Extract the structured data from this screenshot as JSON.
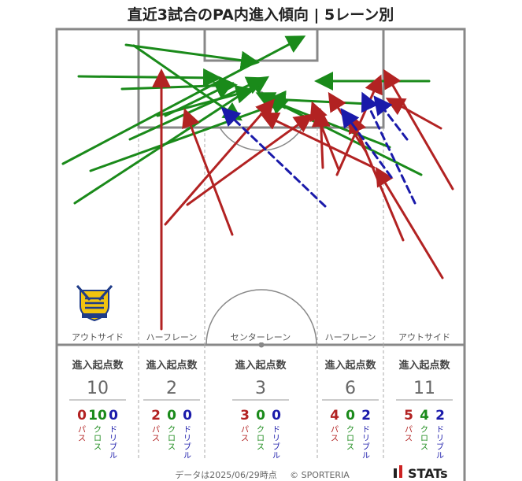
{
  "title": "直近3試合のPA内進入傾向 | 5レーン別",
  "footer": {
    "date": "データは2025/06/29時点",
    "copyright": "© SPORTERIA",
    "logo": "STATs"
  },
  "colors": {
    "pass": "#b22222",
    "cross": "#1a8a1a",
    "dribble": "#1a1aaa",
    "line": "#888888",
    "divider": "#aaaaaa"
  },
  "icons": {
    "team_crest": "team-crest-icon",
    "brand_logo": "stats-logo-icon"
  },
  "chart_data": {
    "type": "arrow-map",
    "lanes": [
      {
        "name": "アウトサイド",
        "header": "進入起点数",
        "total": "10",
        "pass": "0",
        "cross": "10",
        "dribble": "0"
      },
      {
        "name": "ハーフレーン",
        "header": "進入起点数",
        "total": "2",
        "pass": "2",
        "cross": "0",
        "dribble": "0"
      },
      {
        "name": "センターレーン",
        "header": "進入起点数",
        "total": "3",
        "pass": "3",
        "cross": "0",
        "dribble": "0"
      },
      {
        "name": "ハーフレーン",
        "header": "進入起点数",
        "total": "6",
        "pass": "4",
        "cross": "0",
        "dribble": "2"
      },
      {
        "name": "アウトサイド",
        "header": "進入起点数",
        "total": "11",
        "pass": "5",
        "cross": "4",
        "dribble": "2"
      }
    ],
    "type_labels": {
      "pass": "パス",
      "cross": "クロス",
      "dribble": "ドリブル"
    },
    "arrows": [
      {
        "kind": "cross",
        "from": [
          80,
          208
        ],
        "to": [
          383,
          48
        ]
      },
      {
        "kind": "cross",
        "from": [
          95,
          258
        ],
        "to": [
          337,
          100
        ]
      },
      {
        "kind": "cross",
        "from": [
          115,
          217
        ],
        "to": [
          363,
          128
        ]
      },
      {
        "kind": "cross",
        "from": [
          165,
          177
        ],
        "to": [
          332,
          101
        ]
      },
      {
        "kind": "cross",
        "from": [
          200,
          147
        ],
        "to": [
          318,
          115
        ]
      },
      {
        "kind": "cross",
        "from": [
          100,
          97
        ],
        "to": [
          276,
          99
        ]
      },
      {
        "kind": "cross",
        "from": [
          155,
          113
        ],
        "to": [
          296,
          108
        ]
      },
      {
        "kind": "cross",
        "from": [
          170,
          58
        ],
        "to": [
          303,
          150
        ]
      },
      {
        "kind": "cross",
        "from": [
          210,
          147
        ],
        "to": [
          292,
          107
        ]
      },
      {
        "kind": "cross",
        "from": [
          160,
          57
        ],
        "to": [
          324,
          79
        ]
      },
      {
        "kind": "cross",
        "from": [
          545,
          103
        ],
        "to": [
          405,
          103
        ]
      },
      {
        "kind": "cross",
        "from": [
          535,
          222
        ],
        "to": [
          330,
          120
        ]
      },
      {
        "kind": "cross",
        "from": [
          495,
          187
        ],
        "to": [
          340,
          126
        ]
      },
      {
        "kind": "cross",
        "from": [
          510,
          134
        ],
        "to": [
          345,
          126
        ]
      },
      {
        "kind": "pass",
        "from": [
          205,
          418
        ],
        "to": [
          205,
          93
        ]
      },
      {
        "kind": "pass",
        "from": [
          210,
          285
        ],
        "to": [
          345,
          130
        ]
      },
      {
        "kind": "pass",
        "from": [
          295,
          298
        ],
        "to": [
          236,
          143
        ]
      },
      {
        "kind": "pass",
        "from": [
          238,
          260
        ],
        "to": [
          393,
          148
        ]
      },
      {
        "kind": "pass",
        "from": [
          410,
          213
        ],
        "to": [
          407,
          143
        ]
      },
      {
        "kind": "pass",
        "from": [
          428,
          222
        ],
        "to": [
          482,
          100
        ]
      },
      {
        "kind": "pass",
        "from": [
          475,
          213
        ],
        "to": [
          335,
          146
        ]
      },
      {
        "kind": "pass",
        "from": [
          465,
          193
        ],
        "to": [
          420,
          122
        ]
      },
      {
        "kind": "pass",
        "from": [
          562,
          353
        ],
        "to": [
          480,
          217
        ]
      },
      {
        "kind": "pass",
        "from": [
          512,
          305
        ],
        "to": [
          447,
          150
        ]
      },
      {
        "kind": "pass",
        "from": [
          575,
          240
        ],
        "to": [
          490,
          93
        ]
      },
      {
        "kind": "pass",
        "from": [
          560,
          163
        ],
        "to": [
          495,
          127
        ]
      },
      {
        "kind": "pass",
        "from": [
          430,
          215
        ],
        "to": [
          398,
          134
        ]
      },
      {
        "kind": "dribble",
        "from": [
          413,
          262
        ],
        "to": [
          285,
          140
        ]
      },
      {
        "kind": "dribble",
        "from": [
          527,
          258
        ],
        "to": [
          462,
          122
        ]
      },
      {
        "kind": "dribble",
        "from": [
          497,
          225
        ],
        "to": [
          436,
          142
        ]
      },
      {
        "kind": "dribble",
        "from": [
          517,
          177
        ],
        "to": [
          478,
          126
        ]
      }
    ]
  }
}
